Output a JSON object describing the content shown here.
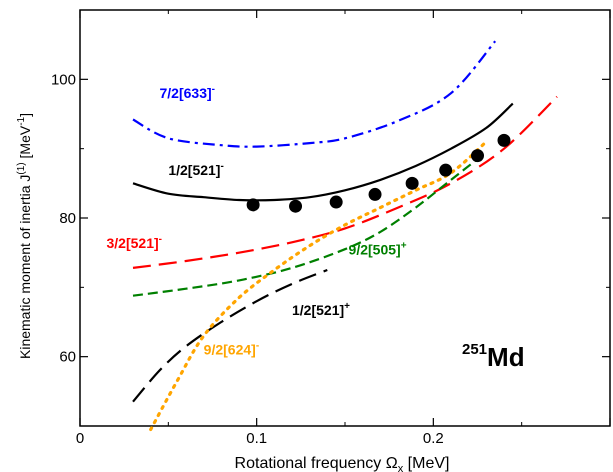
{
  "chart_data": {
    "type": "line",
    "xlabel": "Rotational frequency Ω",
    "xlabel_sub": "x",
    "xlabel_unit": " [MeV]",
    "ylabel": "Kinematic moment of inertia J",
    "ylabel_sup": "(1)",
    "ylabel_unit": " [MeV",
    "ylabel_unit_sup": "-1",
    "ylabel_close": "]",
    "xlim": [
      0,
      0.3
    ],
    "ylim": [
      50,
      110
    ],
    "x_ticks": [
      "0",
      "0.1",
      "0.2"
    ],
    "y_ticks": [
      "60",
      "80",
      "100"
    ],
    "annotation": {
      "sup": "251",
      "text": "Md"
    },
    "series": [
      {
        "name": "7/2[633]",
        "parity": "-",
        "color": "#0000ff",
        "style": "dashdot",
        "x": [
          0.03,
          0.05,
          0.08,
          0.1,
          0.13,
          0.15,
          0.18,
          0.21,
          0.235
        ],
        "y": [
          94.2,
          91.5,
          90.5,
          90.3,
          90.8,
          91.5,
          94.0,
          98.0,
          105.5
        ]
      },
      {
        "name": "1/2[521]",
        "parity": "-",
        "color": "#000000",
        "style": "solid",
        "x": [
          0.03,
          0.05,
          0.07,
          0.09,
          0.11,
          0.13,
          0.15,
          0.17,
          0.19,
          0.21,
          0.23,
          0.245
        ],
        "y": [
          85.0,
          83.5,
          83.0,
          82.6,
          82.6,
          83.0,
          84.0,
          85.5,
          87.5,
          90.0,
          93.0,
          96.5
        ]
      },
      {
        "name": "3/2[521]",
        "parity": "-",
        "color": "#ff0000",
        "style": "longdash",
        "x": [
          0.03,
          0.06,
          0.09,
          0.12,
          0.15,
          0.18,
          0.21,
          0.24,
          0.27
        ],
        "y": [
          72.8,
          73.8,
          75.0,
          76.5,
          78.5,
          81.5,
          85.0,
          90.0,
          97.5
        ]
      },
      {
        "name": "9/2[505]",
        "parity": "+",
        "color": "#008000",
        "style": "dashed",
        "x": [
          0.03,
          0.06,
          0.09,
          0.12,
          0.15,
          0.17,
          0.19,
          0.21,
          0.23
        ],
        "y": [
          68.8,
          69.8,
          71.0,
          72.8,
          75.5,
          78.0,
          81.5,
          85.5,
          89.5
        ]
      },
      {
        "name": "1/2[521]",
        "parity": "+",
        "color": "#000000",
        "style": "longdash",
        "x": [
          0.03,
          0.045,
          0.06,
          0.08,
          0.1,
          0.12,
          0.14
        ],
        "y": [
          53.5,
          58.0,
          61.5,
          65.0,
          68.0,
          70.5,
          72.5
        ]
      },
      {
        "name": "9/2[624]",
        "parity": "-",
        "color": "#ffa500",
        "style": "dotted",
        "x": [
          0.04,
          0.055,
          0.07,
          0.09,
          0.11,
          0.13,
          0.15,
          0.17,
          0.19,
          0.21,
          0.23
        ],
        "y": [
          49.5,
          56.5,
          63.0,
          68.5,
          72.5,
          76.0,
          79.0,
          81.5,
          84.0,
          86.5,
          91.0
        ]
      },
      {
        "name": "",
        "parity": "",
        "color": "#000000",
        "style": "markers",
        "x": [
          0.098,
          0.122,
          0.145,
          0.167,
          0.188,
          0.207,
          0.225,
          0.24
        ],
        "y": [
          81.9,
          81.7,
          82.3,
          83.4,
          85.0,
          86.9,
          89.0,
          91.2
        ]
      }
    ],
    "labels": [
      {
        "text": "7/2[633]",
        "sup": "-",
        "color": "#0000ff",
        "x": 0.045,
        "y": 97.3
      },
      {
        "text": "1/2[521]",
        "sup": "-",
        "color": "#000000",
        "x": 0.05,
        "y": 86.2
      },
      {
        "text": "3/2[521]",
        "sup": "-",
        "color": "#ff0000",
        "x": 0.015,
        "y": 75.7
      },
      {
        "text": "9/2[505]",
        "sup": "+",
        "color": "#008000",
        "x": 0.152,
        "y": 74.7
      },
      {
        "text": "1/2[521]",
        "sup": "+",
        "color": "#000000",
        "x": 0.12,
        "y": 66.0
      },
      {
        "text": "9/2[624]",
        "sup": "-",
        "color": "#ffa500",
        "x": 0.07,
        "y": 60.3
      }
    ]
  }
}
